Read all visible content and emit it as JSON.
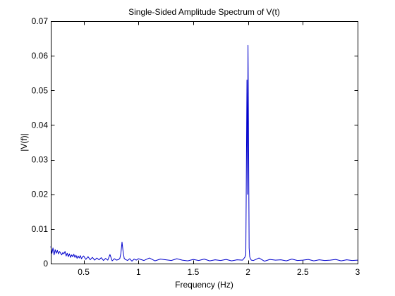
{
  "chart_data": {
    "type": "line",
    "title": "Single-Sided Amplitude Spectrum of V(t)",
    "xlabel": "Frequency (Hz)",
    "ylabel": "|V(f)|",
    "xlim": [
      0.2,
      3.0
    ],
    "ylim": [
      0,
      0.07
    ],
    "grid": false,
    "legend": "none",
    "x_ticks": [
      0.5,
      1,
      1.5,
      2,
      2.5,
      3
    ],
    "x_tick_labels": [
      "0.5",
      "1",
      "1.5",
      "2",
      "2.5",
      "3"
    ],
    "y_ticks": [
      0,
      0.01,
      0.02,
      0.03,
      0.04,
      0.05,
      0.06,
      0.07
    ],
    "y_tick_labels": [
      "0",
      "0.01",
      "0.02",
      "0.03",
      "0.04",
      "0.05",
      "0.06",
      "0.07"
    ],
    "series": [
      {
        "color": "#0000cc",
        "x": [
          0.2,
          0.21,
          0.22,
          0.23,
          0.24,
          0.25,
          0.26,
          0.27,
          0.28,
          0.29,
          0.3,
          0.31,
          0.32,
          0.33,
          0.34,
          0.35,
          0.36,
          0.37,
          0.38,
          0.39,
          0.4,
          0.41,
          0.42,
          0.43,
          0.44,
          0.45,
          0.46,
          0.47,
          0.48,
          0.49,
          0.5,
          0.52,
          0.54,
          0.56,
          0.58,
          0.6,
          0.62,
          0.64,
          0.66,
          0.68,
          0.7,
          0.72,
          0.74,
          0.76,
          0.78,
          0.8,
          0.82,
          0.83,
          0.84,
          0.85,
          0.86,
          0.87,
          0.88,
          0.9,
          0.92,
          0.94,
          0.96,
          0.98,
          1.0,
          1.05,
          1.1,
          1.15,
          1.2,
          1.25,
          1.3,
          1.35,
          1.4,
          1.45,
          1.5,
          1.55,
          1.6,
          1.65,
          1.7,
          1.75,
          1.8,
          1.85,
          1.9,
          1.95,
          1.97,
          1.98,
          1.99,
          1.995,
          2.0,
          2.005,
          2.01,
          2.015,
          2.02,
          2.03,
          2.05,
          2.1,
          2.15,
          2.2,
          2.25,
          2.3,
          2.35,
          2.4,
          2.45,
          2.5,
          2.55,
          2.6,
          2.65,
          2.7,
          2.75,
          2.8,
          2.85,
          2.9,
          2.95,
          3.0
        ],
        "y": [
          0.005,
          0.003,
          0.0045,
          0.0025,
          0.004,
          0.003,
          0.0038,
          0.0028,
          0.0035,
          0.003,
          0.0025,
          0.0032,
          0.0028,
          0.0035,
          0.0022,
          0.003,
          0.002,
          0.0028,
          0.0018,
          0.0025,
          0.002,
          0.0027,
          0.0018,
          0.0024,
          0.0015,
          0.0022,
          0.0016,
          0.0023,
          0.0014,
          0.002,
          0.0022,
          0.0012,
          0.002,
          0.0011,
          0.0018,
          0.001,
          0.0016,
          0.0011,
          0.0017,
          0.0009,
          0.0015,
          0.001,
          0.0026,
          0.0008,
          0.0014,
          0.001,
          0.0012,
          0.0015,
          0.003,
          0.0062,
          0.0035,
          0.0015,
          0.0012,
          0.0009,
          0.0014,
          0.0007,
          0.0013,
          0.001,
          0.0014,
          0.0009,
          0.0016,
          0.0008,
          0.0013,
          0.0011,
          0.0009,
          0.0014,
          0.001,
          0.0008,
          0.0012,
          0.0009,
          0.0013,
          0.0008,
          0.0011,
          0.0009,
          0.0012,
          0.0008,
          0.0011,
          0.001,
          0.0018,
          0.0025,
          0.053,
          0.02,
          0.063,
          0.035,
          0.0045,
          0.002,
          0.0015,
          0.001,
          0.0009,
          0.0016,
          0.0007,
          0.0012,
          0.001,
          0.0011,
          0.0008,
          0.0013,
          0.0009,
          0.001,
          0.0012,
          0.0008,
          0.0011,
          0.0009,
          0.001,
          0.0012,
          0.0008,
          0.0011,
          0.0009,
          0.001
        ]
      }
    ]
  }
}
